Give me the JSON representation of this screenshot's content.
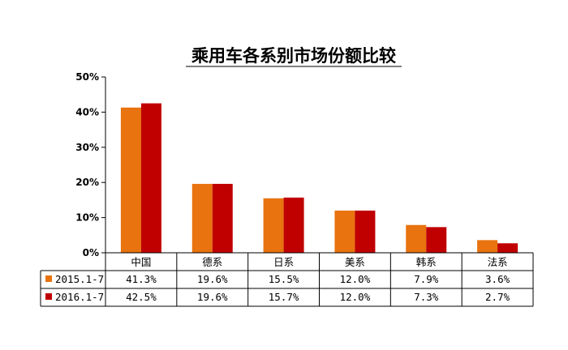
{
  "colors": {
    "series_2015": "#E8730F",
    "series_2016": "#C00000",
    "axis": "#000000"
  },
  "chart_data": {
    "type": "bar",
    "title": "乘用车各系别市场份额比较",
    "categories": [
      "中国",
      "德系",
      "日系",
      "美系",
      "韩系",
      "法系"
    ],
    "series": [
      {
        "name": "2015.1-7",
        "values": [
          41.3,
          19.6,
          15.5,
          12.0,
          7.9,
          3.6
        ],
        "labels": [
          "41.3%",
          "19.6%",
          "15.5%",
          "12.0%",
          "7.9%",
          "3.6%"
        ]
      },
      {
        "name": "2016.1-7",
        "values": [
          42.5,
          19.6,
          15.7,
          12.0,
          7.3,
          2.7
        ],
        "labels": [
          "42.5%",
          "19.6%",
          "15.7%",
          "12.0%",
          "7.3%",
          "2.7%"
        ]
      }
    ],
    "yticks": [
      "0%",
      "10%",
      "20%",
      "30%",
      "40%",
      "50%"
    ],
    "ylim": [
      0,
      50
    ],
    "xlabel": "",
    "ylabel": "",
    "grid": false,
    "legend": "data-table"
  }
}
